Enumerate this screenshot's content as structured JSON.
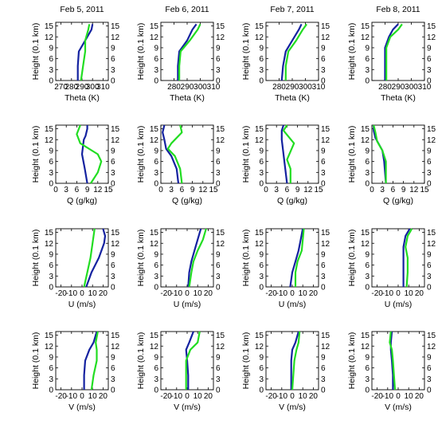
{
  "figure": {
    "colors": {
      "series_1": "#1422a0",
      "series_2": "#22dd22",
      "axis": "#000000"
    }
  },
  "chart_data": [
    {
      "type": "line",
      "title": "Feb 5, 2011",
      "xlabel": "Theta (K)",
      "ylabel": "Height (0.1 km)",
      "xlim": [
        265,
        315
      ],
      "ylim": [
        0,
        16
      ],
      "xticks": [
        270,
        280,
        290,
        300,
        310
      ],
      "yticks": [
        0,
        3,
        6,
        9,
        12,
        15
      ],
      "grid": false,
      "series": [
        {
          "color": "#1422a0",
          "x": [
            286,
            286,
            287,
            293,
            299,
            300
          ],
          "y": [
            0,
            4,
            8,
            11,
            14,
            15.5
          ]
        },
        {
          "color": "#22dd22",
          "x": [
            289,
            291,
            293,
            293,
            296,
            297
          ],
          "y": [
            0,
            4,
            8,
            11,
            14,
            15.5
          ]
        }
      ]
    },
    {
      "type": "line",
      "title": "Feb 6, 2011",
      "xlabel": "Theta (K)",
      "ylabel": "Height (0.1 km)",
      "xlim": [
        270,
        310
      ],
      "ylim": [
        0,
        16
      ],
      "xticks": [
        280,
        290,
        300,
        310
      ],
      "yticks": [
        0,
        3,
        6,
        9,
        12,
        15
      ],
      "grid": false,
      "series": [
        {
          "color": "#1422a0",
          "x": [
            283,
            283,
            284,
            290,
            294,
            297
          ],
          "y": [
            0,
            4,
            8,
            11,
            14,
            15.5
          ]
        },
        {
          "color": "#22dd22",
          "x": [
            284,
            284,
            285,
            292,
            298,
            300
          ],
          "y": [
            0,
            4,
            8,
            11,
            14,
            15.5
          ]
        }
      ]
    },
    {
      "type": "line",
      "title": "Feb 7, 2011",
      "xlabel": "Theta (K)",
      "ylabel": "Height (0.1 km)",
      "xlim": [
        270,
        310
      ],
      "ylim": [
        0,
        16
      ],
      "xticks": [
        280,
        290,
        300,
        310
      ],
      "yticks": [
        0,
        3,
        6,
        9,
        12,
        15
      ],
      "grid": false,
      "series": [
        {
          "color": "#1422a0",
          "x": [
            282,
            283,
            285,
            290,
            295,
            297
          ],
          "y": [
            0,
            4,
            8,
            11,
            14,
            15.5
          ]
        },
        {
          "color": "#22dd22",
          "x": [
            285,
            285,
            287,
            293,
            298,
            301
          ],
          "y": [
            0,
            4,
            8,
            11,
            14,
            15.5
          ]
        }
      ]
    },
    {
      "type": "line",
      "title": "Feb 8, 2011",
      "xlabel": "Theta (K)",
      "ylabel": "Height (0.1 km)",
      "xlim": [
        270,
        310
      ],
      "ylim": [
        0,
        16
      ],
      "xticks": [
        280,
        290,
        300,
        310
      ],
      "yticks": [
        0,
        3,
        6,
        9,
        12,
        15
      ],
      "grid": false,
      "series": [
        {
          "color": "#1422a0",
          "x": [
            280,
            280,
            280,
            283,
            286,
            290
          ],
          "y": [
            0,
            4,
            9,
            12,
            14,
            15.5
          ]
        },
        {
          "color": "#22dd22",
          "x": [
            281,
            281,
            281,
            284,
            290,
            293
          ],
          "y": [
            0,
            4,
            9,
            12,
            14,
            15.5
          ]
        }
      ]
    },
    {
      "type": "line",
      "xlabel": "Q (g/kg)",
      "ylabel": "Height (0.1 km)",
      "xlim": [
        0,
        15
      ],
      "ylim": [
        0,
        16
      ],
      "xticks": [
        0,
        3,
        6,
        9,
        12,
        15
      ],
      "yticks": [
        0,
        3,
        6,
        9,
        12,
        15
      ],
      "grid": false,
      "series": [
        {
          "color": "#1422a0",
          "x": [
            9,
            8.3,
            7.5,
            8,
            8.5,
            9,
            9
          ],
          "y": [
            0,
            4,
            8,
            12,
            13,
            15,
            16
          ]
        },
        {
          "color": "#22dd22",
          "x": [
            10,
            12,
            13,
            12,
            7,
            6,
            7
          ],
          "y": [
            0,
            3,
            6,
            8,
            11,
            13.5,
            16
          ]
        }
      ]
    },
    {
      "type": "line",
      "xlabel": "Q (g/kg)",
      "ylabel": "Height (0.1 km)",
      "xlim": [
        0,
        15
      ],
      "ylim": [
        0,
        16
      ],
      "xticks": [
        0,
        3,
        6,
        9,
        12,
        15
      ],
      "yticks": [
        0,
        3,
        6,
        9,
        12,
        15
      ],
      "grid": false,
      "series": [
        {
          "color": "#1422a0",
          "x": [
            5,
            4.5,
            3,
            1.5,
            1,
            0.5,
            1
          ],
          "y": [
            0,
            4,
            7.5,
            9.5,
            12,
            14,
            16
          ]
        },
        {
          "color": "#22dd22",
          "x": [
            6,
            5.5,
            4,
            2,
            3,
            6,
            5.5
          ],
          "y": [
            0,
            4,
            7.5,
            9.5,
            11,
            14,
            16
          ]
        }
      ]
    },
    {
      "type": "line",
      "xlabel": "Q (g/kg)",
      "ylabel": "Height (0.1 km)",
      "xlim": [
        0,
        15
      ],
      "ylim": [
        0,
        16
      ],
      "xticks": [
        0,
        3,
        6,
        9,
        12,
        15
      ],
      "yticks": [
        0,
        3,
        6,
        9,
        12,
        15
      ],
      "grid": false,
      "series": [
        {
          "color": "#1422a0",
          "x": [
            6,
            5.5,
            5,
            4.5,
            4.5,
            5
          ],
          "y": [
            0,
            4,
            8,
            12,
            14.5,
            16
          ]
        },
        {
          "color": "#22dd22",
          "x": [
            7,
            7,
            6,
            8,
            5,
            6
          ],
          "y": [
            0,
            4,
            6.5,
            11,
            14.5,
            16
          ]
        }
      ]
    },
    {
      "type": "line",
      "xlabel": "Q (g/kg)",
      "ylabel": "Height (0.1 km)",
      "xlim": [
        0,
        15
      ],
      "ylim": [
        0,
        16
      ],
      "xticks": [
        0,
        3,
        6,
        9,
        12,
        15
      ],
      "yticks": [
        0,
        3,
        6,
        9,
        12,
        15
      ],
      "grid": false,
      "series": [
        {
          "color": "#1422a0",
          "x": [
            4,
            3.5,
            3,
            1,
            0.5,
            0.5
          ],
          "y": [
            0,
            6,
            9,
            12.5,
            14.5,
            16
          ]
        },
        {
          "color": "#22dd22",
          "x": [
            4,
            4,
            3,
            1.5,
            1,
            0.5
          ],
          "y": [
            0,
            6,
            9,
            11.5,
            14,
            16
          ]
        }
      ]
    },
    {
      "type": "line",
      "xlabel": "U (m/s)",
      "ylabel": "Height (0.1 km)",
      "xlim": [
        -25,
        25
      ],
      "ylim": [
        0,
        16
      ],
      "xticks": [
        -20,
        -10,
        0,
        10,
        20
      ],
      "yticks": [
        0,
        3,
        6,
        9,
        12,
        15
      ],
      "grid": false,
      "series": [
        {
          "color": "#1422a0",
          "x": [
            4,
            9,
            16,
            21,
            22,
            20
          ],
          "y": [
            0,
            4,
            8,
            12,
            14,
            16
          ]
        },
        {
          "color": "#22dd22",
          "x": [
            2,
            5,
            8,
            10,
            11,
            12
          ],
          "y": [
            0,
            4,
            8,
            12,
            14,
            16
          ]
        }
      ]
    },
    {
      "type": "line",
      "xlabel": "U (m/s)",
      "ylabel": "Height (0.1 km)",
      "xlim": [
        -25,
        25
      ],
      "ylim": [
        0,
        16
      ],
      "xticks": [
        -20,
        -10,
        0,
        10,
        20
      ],
      "yticks": [
        0,
        3,
        6,
        9,
        12,
        15
      ],
      "grid": false,
      "series": [
        {
          "color": "#1422a0",
          "x": [
            1,
            2,
            4,
            7,
            10,
            13
          ],
          "y": [
            0,
            4,
            7,
            10,
            13,
            16
          ]
        },
        {
          "color": "#22dd22",
          "x": [
            2,
            4,
            6,
            10,
            15,
            18
          ],
          "y": [
            0,
            4,
            7,
            10,
            13,
            16
          ]
        }
      ]
    },
    {
      "type": "line",
      "xlabel": "U (m/s)",
      "ylabel": "Height (0.1 km)",
      "xlim": [
        -25,
        25
      ],
      "ylim": [
        0,
        16
      ],
      "xticks": [
        -20,
        -10,
        0,
        10,
        20
      ],
      "yticks": [
        0,
        3,
        6,
        9,
        12,
        15
      ],
      "grid": false,
      "series": [
        {
          "color": "#1422a0",
          "x": [
            -2,
            0,
            3,
            6,
            8,
            10
          ],
          "y": [
            0,
            4,
            7,
            10,
            13,
            16
          ]
        },
        {
          "color": "#22dd22",
          "x": [
            3,
            3,
            5,
            9,
            10,
            11
          ],
          "y": [
            0,
            4,
            7,
            10,
            13,
            16
          ]
        }
      ]
    },
    {
      "type": "line",
      "xlabel": "U (m/s)",
      "ylabel": "Height (0.1 km)",
      "xlim": [
        -25,
        25
      ],
      "ylim": [
        0,
        16
      ],
      "xticks": [
        -20,
        -10,
        0,
        10,
        20
      ],
      "yticks": [
        0,
        3,
        6,
        9,
        12,
        15
      ],
      "grid": false,
      "series": [
        {
          "color": "#1422a0",
          "x": [
            5,
            5,
            5,
            5,
            7,
            11
          ],
          "y": [
            0,
            4,
            8,
            11,
            14,
            16
          ]
        },
        {
          "color": "#22dd22",
          "x": [
            8,
            9,
            9,
            7,
            9,
            13
          ],
          "y": [
            0,
            4,
            8,
            11,
            14,
            16
          ]
        }
      ]
    },
    {
      "type": "line",
      "xlabel": "V (m/s)",
      "ylabel": "Height (0.1 km)",
      "xlim": [
        -25,
        25
      ],
      "ylim": [
        0,
        16
      ],
      "xticks": [
        -20,
        -10,
        0,
        10,
        20
      ],
      "yticks": [
        0,
        3,
        6,
        9,
        12,
        15
      ],
      "grid": false,
      "series": [
        {
          "color": "#1422a0",
          "x": [
            2,
            2,
            3,
            7,
            11,
            14
          ],
          "y": [
            0,
            4,
            8,
            11,
            13,
            16
          ]
        },
        {
          "color": "#22dd22",
          "x": [
            9,
            11,
            14,
            14,
            13,
            15
          ],
          "y": [
            0,
            4,
            8,
            11,
            13,
            16
          ]
        }
      ]
    },
    {
      "type": "line",
      "xlabel": "V (m/s)",
      "ylabel": "Height (0.1 km)",
      "xlim": [
        -25,
        25
      ],
      "ylim": [
        0,
        16
      ],
      "xticks": [
        -20,
        -10,
        0,
        10,
        20
      ],
      "yticks": [
        0,
        3,
        6,
        9,
        12,
        15
      ],
      "grid": false,
      "series": [
        {
          "color": "#1422a0",
          "x": [
            1,
            1,
            0,
            -1,
            2,
            6
          ],
          "y": [
            0,
            4,
            8,
            11,
            13,
            16
          ]
        },
        {
          "color": "#22dd22",
          "x": [
            -1,
            -1,
            -1,
            3,
            10,
            12
          ],
          "y": [
            0,
            4,
            8,
            11,
            13,
            16
          ]
        }
      ]
    },
    {
      "type": "line",
      "xlabel": "V (m/s)",
      "ylabel": "Height (0.1 km)",
      "xlim": [
        -25,
        25
      ],
      "ylim": [
        0,
        16
      ],
      "xticks": [
        -20,
        -10,
        0,
        10,
        20
      ],
      "yticks": [
        0,
        3,
        6,
        9,
        12,
        15
      ],
      "grid": false,
      "series": [
        {
          "color": "#1422a0",
          "x": [
            -1,
            -1,
            -1,
            0,
            3,
            6
          ],
          "y": [
            0,
            4,
            8,
            11,
            13,
            16
          ]
        },
        {
          "color": "#22dd22",
          "x": [
            0,
            1,
            2,
            4,
            6,
            7
          ],
          "y": [
            0,
            4,
            8,
            11,
            13,
            16
          ]
        }
      ]
    },
    {
      "type": "line",
      "xlabel": "V (m/s)",
      "ylabel": "Height (0.1 km)",
      "xlim": [
        -25,
        25
      ],
      "ylim": [
        0,
        16
      ],
      "xticks": [
        -20,
        -10,
        0,
        10,
        20
      ],
      "yticks": [
        0,
        3,
        6,
        9,
        12,
        15
      ],
      "grid": false,
      "series": [
        {
          "color": "#1422a0",
          "x": [
            -5,
            -5,
            -6,
            -7,
            -7,
            -6
          ],
          "y": [
            0,
            4,
            8,
            11,
            13,
            16
          ]
        },
        {
          "color": "#22dd22",
          "x": [
            -3,
            -4,
            -5,
            -6,
            -8,
            -7
          ],
          "y": [
            0,
            4,
            8,
            11,
            13,
            16
          ]
        }
      ]
    }
  ]
}
